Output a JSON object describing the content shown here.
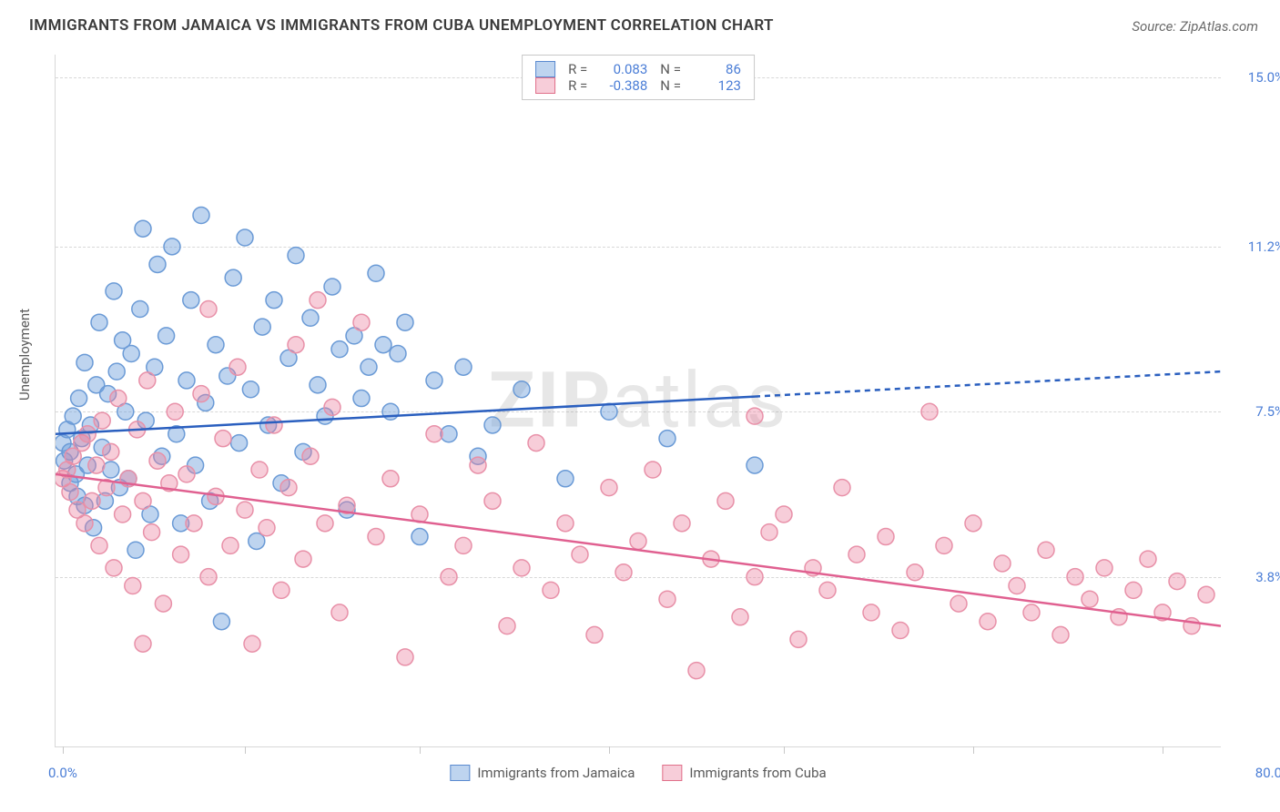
{
  "title": "IMMIGRANTS FROM JAMAICA VS IMMIGRANTS FROM CUBA UNEMPLOYMENT CORRELATION CHART",
  "source_label": "Source:",
  "source_name": "ZipAtlas.com",
  "ylabel": "Unemployment",
  "chart": {
    "type": "scatter",
    "xlim": [
      0,
      80
    ],
    "ylim": [
      0,
      15.5
    ],
    "x_min_label": "0.0%",
    "x_max_label": "80.0%",
    "ytick_labels": [
      "3.8%",
      "7.5%",
      "11.2%",
      "15.0%"
    ],
    "ytick_values": [
      3.8,
      7.5,
      11.2,
      15.0
    ],
    "xtick_positions": [
      0.5,
      13,
      25,
      38,
      50,
      63,
      76
    ],
    "grid_color": "#d8d8d8",
    "background_color": "#ffffff",
    "marker_radius": 9,
    "line_width": 2.5,
    "watermark": "ZIPatlas",
    "series": [
      {
        "name": "Immigrants from Jamaica",
        "color_fill": "rgba(110,160,220,0.45)",
        "color_stroke": "#6a9ad6",
        "line_color": "#2a5fbf",
        "r": 0.083,
        "n": 86,
        "trend_y_at_x0": 7.0,
        "trend_y_at_x80": 8.4,
        "data_extent_x": 48,
        "points": [
          [
            0.5,
            6.8
          ],
          [
            0.6,
            6.4
          ],
          [
            0.8,
            7.1
          ],
          [
            1.0,
            5.9
          ],
          [
            1.0,
            6.6
          ],
          [
            1.2,
            7.4
          ],
          [
            1.4,
            6.1
          ],
          [
            1.5,
            5.6
          ],
          [
            1.6,
            7.8
          ],
          [
            1.8,
            6.9
          ],
          [
            2.0,
            5.4
          ],
          [
            2.0,
            8.6
          ],
          [
            2.2,
            6.3
          ],
          [
            2.4,
            7.2
          ],
          [
            2.6,
            4.9
          ],
          [
            2.8,
            8.1
          ],
          [
            3.0,
            9.5
          ],
          [
            3.2,
            6.7
          ],
          [
            3.4,
            5.5
          ],
          [
            3.6,
            7.9
          ],
          [
            3.8,
            6.2
          ],
          [
            4.0,
            10.2
          ],
          [
            4.2,
            8.4
          ],
          [
            4.4,
            5.8
          ],
          [
            4.6,
            9.1
          ],
          [
            4.8,
            7.5
          ],
          [
            5.0,
            6.0
          ],
          [
            5.2,
            8.8
          ],
          [
            5.5,
            4.4
          ],
          [
            5.8,
            9.8
          ],
          [
            6.0,
            11.6
          ],
          [
            6.2,
            7.3
          ],
          [
            6.5,
            5.2
          ],
          [
            6.8,
            8.5
          ],
          [
            7.0,
            10.8
          ],
          [
            7.3,
            6.5
          ],
          [
            7.6,
            9.2
          ],
          [
            8.0,
            11.2
          ],
          [
            8.3,
            7.0
          ],
          [
            8.6,
            5.0
          ],
          [
            9.0,
            8.2
          ],
          [
            9.3,
            10.0
          ],
          [
            9.6,
            6.3
          ],
          [
            10.0,
            11.9
          ],
          [
            10.3,
            7.7
          ],
          [
            10.6,
            5.5
          ],
          [
            11.0,
            9.0
          ],
          [
            11.4,
            2.8
          ],
          [
            11.8,
            8.3
          ],
          [
            12.2,
            10.5
          ],
          [
            12.6,
            6.8
          ],
          [
            13.0,
            11.4
          ],
          [
            13.4,
            8.0
          ],
          [
            13.8,
            4.6
          ],
          [
            14.2,
            9.4
          ],
          [
            14.6,
            7.2
          ],
          [
            15.0,
            10.0
          ],
          [
            15.5,
            5.9
          ],
          [
            16.0,
            8.7
          ],
          [
            16.5,
            11.0
          ],
          [
            17.0,
            6.6
          ],
          [
            17.5,
            9.6
          ],
          [
            18.0,
            8.1
          ],
          [
            18.5,
            7.4
          ],
          [
            19.0,
            10.3
          ],
          [
            19.5,
            8.9
          ],
          [
            20.0,
            5.3
          ],
          [
            20.5,
            9.2
          ],
          [
            21.0,
            7.8
          ],
          [
            21.5,
            8.5
          ],
          [
            22.0,
            10.6
          ],
          [
            22.5,
            9.0
          ],
          [
            23.0,
            7.5
          ],
          [
            23.5,
            8.8
          ],
          [
            24.0,
            9.5
          ],
          [
            25.0,
            4.7
          ],
          [
            26.0,
            8.2
          ],
          [
            27.0,
            7.0
          ],
          [
            28.0,
            8.5
          ],
          [
            29.0,
            6.5
          ],
          [
            30.0,
            7.2
          ],
          [
            32.0,
            8.0
          ],
          [
            35.0,
            6.0
          ],
          [
            38.0,
            7.5
          ],
          [
            42.0,
            6.9
          ],
          [
            48.0,
            6.3
          ]
        ]
      },
      {
        "name": "Immigrants from Cuba",
        "color_fill": "rgba(235,130,160,0.4)",
        "color_stroke": "#e890a8",
        "line_color": "#e06090",
        "r": -0.388,
        "n": 123,
        "trend_y_at_x0": 6.1,
        "trend_y_at_x80": 2.7,
        "data_extent_x": 80,
        "points": [
          [
            0.5,
            6.0
          ],
          [
            0.8,
            6.2
          ],
          [
            1.0,
            5.7
          ],
          [
            1.2,
            6.5
          ],
          [
            1.5,
            5.3
          ],
          [
            1.8,
            6.8
          ],
          [
            2.0,
            5.0
          ],
          [
            2.2,
            7.0
          ],
          [
            2.5,
            5.5
          ],
          [
            2.8,
            6.3
          ],
          [
            3.0,
            4.5
          ],
          [
            3.2,
            7.3
          ],
          [
            3.5,
            5.8
          ],
          [
            3.8,
            6.6
          ],
          [
            4.0,
            4.0
          ],
          [
            4.3,
            7.8
          ],
          [
            4.6,
            5.2
          ],
          [
            5.0,
            6.0
          ],
          [
            5.3,
            3.6
          ],
          [
            5.6,
            7.1
          ],
          [
            6.0,
            5.5
          ],
          [
            6.3,
            8.2
          ],
          [
            6.6,
            4.8
          ],
          [
            7.0,
            6.4
          ],
          [
            7.4,
            3.2
          ],
          [
            7.8,
            5.9
          ],
          [
            8.2,
            7.5
          ],
          [
            8.6,
            4.3
          ],
          [
            9.0,
            6.1
          ],
          [
            9.5,
            5.0
          ],
          [
            10.0,
            7.9
          ],
          [
            10.5,
            3.8
          ],
          [
            11.0,
            5.6
          ],
          [
            11.5,
            6.9
          ],
          [
            12.0,
            4.5
          ],
          [
            12.5,
            8.5
          ],
          [
            13.0,
            5.3
          ],
          [
            13.5,
            2.3
          ],
          [
            14.0,
            6.2
          ],
          [
            14.5,
            4.9
          ],
          [
            15.0,
            7.2
          ],
          [
            15.5,
            3.5
          ],
          [
            16.0,
            5.8
          ],
          [
            16.5,
            9.0
          ],
          [
            17.0,
            4.2
          ],
          [
            17.5,
            6.5
          ],
          [
            18.0,
            10.0
          ],
          [
            18.5,
            5.0
          ],
          [
            19.0,
            7.6
          ],
          [
            19.5,
            3.0
          ],
          [
            20.0,
            5.4
          ],
          [
            21.0,
            9.5
          ],
          [
            22.0,
            4.7
          ],
          [
            23.0,
            6.0
          ],
          [
            24.0,
            2.0
          ],
          [
            25.0,
            5.2
          ],
          [
            26.0,
            7.0
          ],
          [
            27.0,
            3.8
          ],
          [
            28.0,
            4.5
          ],
          [
            29.0,
            6.3
          ],
          [
            30.0,
            5.5
          ],
          [
            31.0,
            2.7
          ],
          [
            32.0,
            4.0
          ],
          [
            33.0,
            6.8
          ],
          [
            34.0,
            3.5
          ],
          [
            35.0,
            5.0
          ],
          [
            36.0,
            4.3
          ],
          [
            37.0,
            2.5
          ],
          [
            38.0,
            5.8
          ],
          [
            39.0,
            3.9
          ],
          [
            40.0,
            4.6
          ],
          [
            41.0,
            6.2
          ],
          [
            42.0,
            3.3
          ],
          [
            43.0,
            5.0
          ],
          [
            44.0,
            1.7
          ],
          [
            45.0,
            4.2
          ],
          [
            46.0,
            5.5
          ],
          [
            47.0,
            2.9
          ],
          [
            48.0,
            3.8
          ],
          [
            49.0,
            4.8
          ],
          [
            50.0,
            5.2
          ],
          [
            51.0,
            2.4
          ],
          [
            52.0,
            4.0
          ],
          [
            53.0,
            3.5
          ],
          [
            54.0,
            5.8
          ],
          [
            55.0,
            4.3
          ],
          [
            56.0,
            3.0
          ],
          [
            57.0,
            4.7
          ],
          [
            58.0,
            2.6
          ],
          [
            59.0,
            3.9
          ],
          [
            60.0,
            7.5
          ],
          [
            61.0,
            4.5
          ],
          [
            62.0,
            3.2
          ],
          [
            63.0,
            5.0
          ],
          [
            64.0,
            2.8
          ],
          [
            65.0,
            4.1
          ],
          [
            66.0,
            3.6
          ],
          [
            67.0,
            3.0
          ],
          [
            68.0,
            4.4
          ],
          [
            69.0,
            2.5
          ],
          [
            70.0,
            3.8
          ],
          [
            71.0,
            3.3
          ],
          [
            72.0,
            4.0
          ],
          [
            73.0,
            2.9
          ],
          [
            74.0,
            3.5
          ],
          [
            75.0,
            4.2
          ],
          [
            76.0,
            3.0
          ],
          [
            77.0,
            3.7
          ],
          [
            78.0,
            2.7
          ],
          [
            79.0,
            3.4
          ],
          [
            48.0,
            7.4
          ],
          [
            10.5,
            9.8
          ],
          [
            6.0,
            2.3
          ]
        ]
      }
    ]
  },
  "legend_top": {
    "r_label": "R =",
    "n_label": "N ="
  },
  "legend_bottom": {
    "series1": "Immigrants from Jamaica",
    "series2": "Immigrants from Cuba"
  }
}
